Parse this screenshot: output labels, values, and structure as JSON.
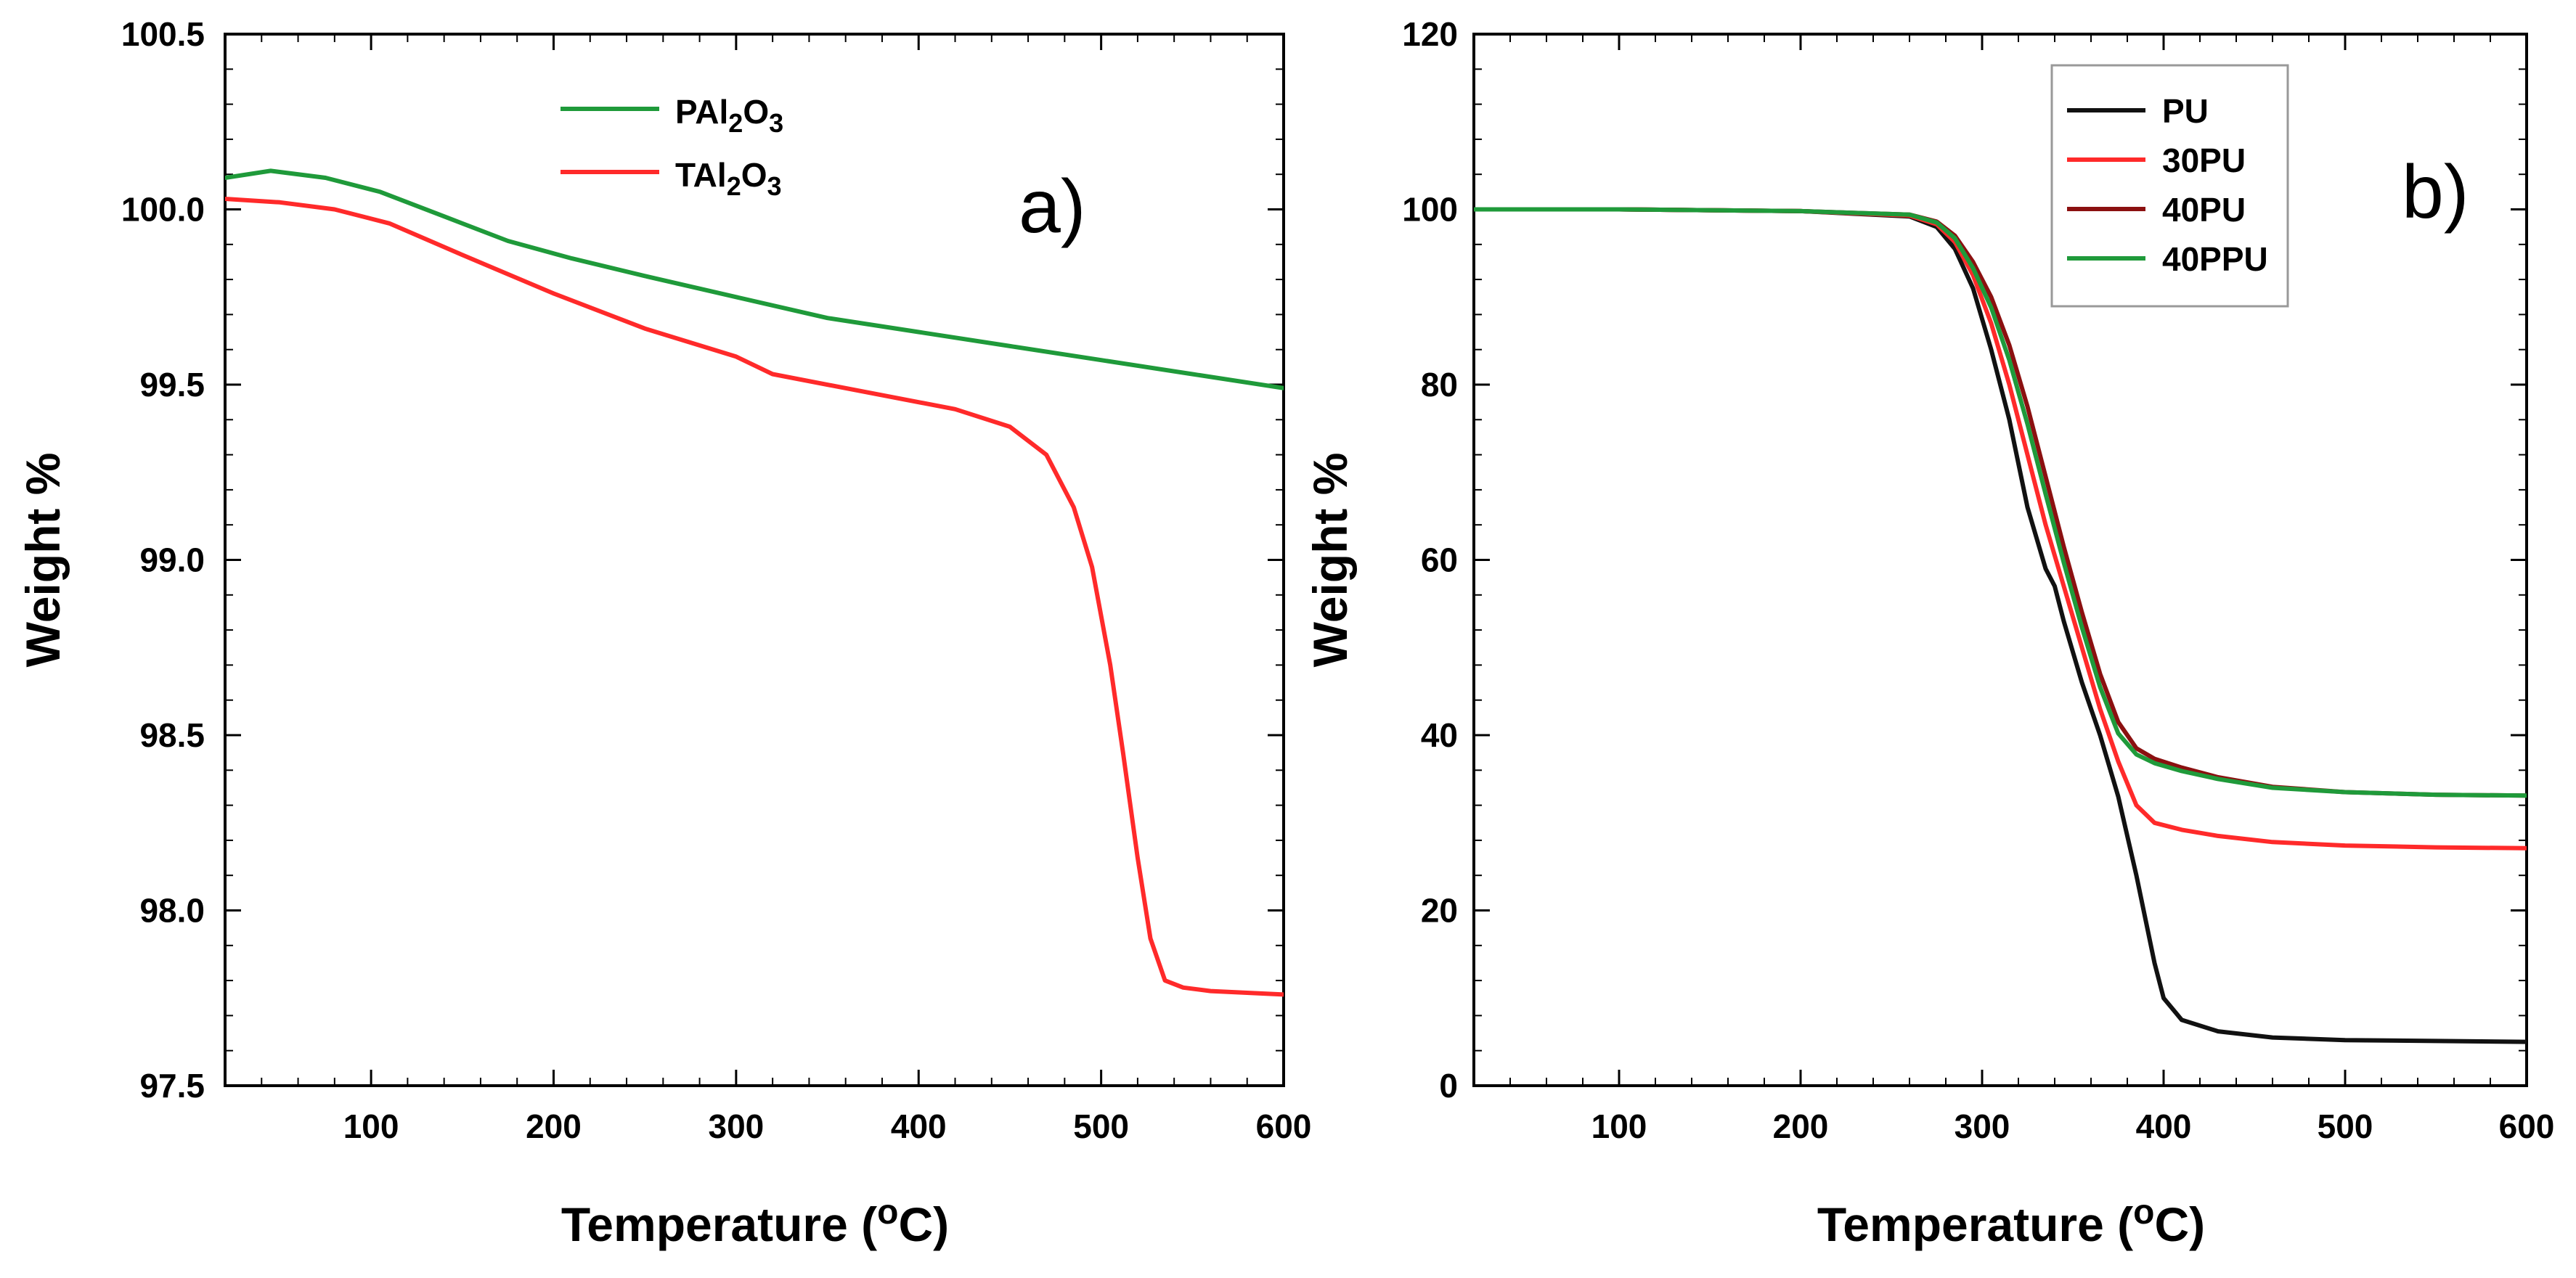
{
  "chart_data": [
    {
      "type": "line",
      "panel_label": "a)",
      "xlabel": "Temperature (°C)",
      "xlabel_parts": {
        "main": "Temperature (",
        "sup": "o",
        "end": "C)"
      },
      "ylabel": "Weight %",
      "xlim": [
        20,
        600
      ],
      "ylim": [
        97.5,
        100.5
      ],
      "xticks": [
        100,
        200,
        300,
        400,
        500,
        600
      ],
      "xtick_labels": [
        "100",
        "200",
        "300",
        "400",
        "500",
        "600"
      ],
      "yticks": [
        97.5,
        98.0,
        98.5,
        99.0,
        99.5,
        100.0,
        100.5
      ],
      "ytick_labels": [
        "97.5",
        "98.0",
        "98.5",
        "99.0",
        "99.5",
        "100.0",
        "100.5"
      ],
      "legend_position": "top-center",
      "series": [
        {
          "name": "PAl2O3",
          "legend": {
            "prefix": "PAl",
            "sub1": "2",
            "mid": "O",
            "sub2": "3"
          },
          "color": "#1f9a3a",
          "x": [
            20,
            45,
            75,
            105,
            140,
            175,
            210,
            250,
            300,
            350,
            400,
            450,
            500,
            550,
            600
          ],
          "y": [
            100.09,
            100.11,
            100.09,
            100.05,
            99.98,
            99.91,
            99.86,
            99.81,
            99.75,
            99.69,
            99.65,
            99.61,
            99.57,
            99.53,
            99.49
          ]
        },
        {
          "name": "TAl2O3",
          "legend": {
            "prefix": "TAl",
            "sub1": "2",
            "mid": "O",
            "sub2": "3"
          },
          "color": "#ff2a2a",
          "x": [
            20,
            50,
            80,
            110,
            150,
            200,
            250,
            300,
            320,
            370,
            420,
            450,
            470,
            485,
            495,
            505,
            512,
            520,
            527,
            535,
            545,
            560,
            600
          ],
          "y": [
            100.03,
            100.02,
            100.0,
            99.96,
            99.87,
            99.76,
            99.66,
            99.58,
            99.53,
            99.48,
            99.43,
            99.38,
            99.3,
            99.15,
            98.98,
            98.7,
            98.45,
            98.15,
            97.92,
            97.8,
            97.78,
            97.77,
            97.76
          ]
        }
      ]
    },
    {
      "type": "line",
      "panel_label": "b)",
      "xlabel": "Temperature (°C)",
      "xlabel_parts": {
        "main": "Temperature (",
        "sup": "o",
        "end": "C)"
      },
      "ylabel": "Weight %",
      "xlim": [
        20,
        600
      ],
      "ylim": [
        0,
        120
      ],
      "xticks": [
        100,
        200,
        300,
        400,
        500,
        600
      ],
      "xtick_labels": [
        "100",
        "200",
        "300",
        "400",
        "500",
        "600"
      ],
      "yticks": [
        0,
        20,
        40,
        60,
        80,
        100,
        120
      ],
      "ytick_labels": [
        "0",
        "20",
        "40",
        "60",
        "80",
        "100",
        "120"
      ],
      "legend_position": "top-right",
      "series": [
        {
          "name": "PU",
          "color": "#111111",
          "x": [
            20,
            100,
            200,
            260,
            275,
            285,
            295,
            305,
            315,
            325,
            335,
            340,
            345,
            355,
            365,
            375,
            385,
            395,
            400,
            410,
            430,
            460,
            500,
            550,
            600
          ],
          "y": [
            100,
            100,
            99.8,
            99.2,
            98,
            95.5,
            91,
            84,
            76,
            66,
            59,
            57,
            53,
            46,
            40,
            33,
            24,
            14,
            10,
            7.5,
            6.2,
            5.5,
            5.2,
            5.1,
            5.0
          ]
        },
        {
          "name": "30PU",
          "color": "#ff2a2a",
          "x": [
            20,
            100,
            200,
            260,
            275,
            285,
            295,
            305,
            315,
            325,
            335,
            345,
            355,
            365,
            375,
            385,
            395,
            410,
            430,
            460,
            500,
            550,
            600
          ],
          "y": [
            100,
            100,
            99.8,
            99.3,
            98.3,
            96.3,
            92.5,
            87,
            80,
            72,
            64,
            57,
            50,
            43,
            37,
            32,
            30,
            29.2,
            28.5,
            27.8,
            27.4,
            27.2,
            27.1
          ]
        },
        {
          "name": "40PU",
          "color": "#8b1010",
          "x": [
            20,
            100,
            200,
            260,
            275,
            285,
            295,
            305,
            315,
            325,
            335,
            345,
            355,
            365,
            375,
            385,
            395,
            410,
            430,
            460,
            500,
            550,
            600
          ],
          "y": [
            100,
            100,
            99.8,
            99.4,
            98.6,
            97,
            94,
            90,
            84.5,
            77.5,
            69.5,
            61.5,
            54,
            47,
            41.5,
            38.5,
            37.3,
            36.3,
            35.2,
            34.1,
            33.5,
            33.2,
            33.1
          ]
        },
        {
          "name": "40PPU",
          "color": "#1f9a3a",
          "x": [
            20,
            100,
            200,
            260,
            275,
            285,
            295,
            305,
            315,
            325,
            335,
            345,
            355,
            365,
            375,
            385,
            395,
            410,
            430,
            460,
            500,
            550,
            600
          ],
          "y": [
            100,
            100,
            99.8,
            99.4,
            98.5,
            96.7,
            93.3,
            88.8,
            82.8,
            75.5,
            67.5,
            59.7,
            52.3,
            45.5,
            40.2,
            37.8,
            36.8,
            35.9,
            35.0,
            34.0,
            33.5,
            33.2,
            33.1
          ]
        }
      ]
    }
  ]
}
